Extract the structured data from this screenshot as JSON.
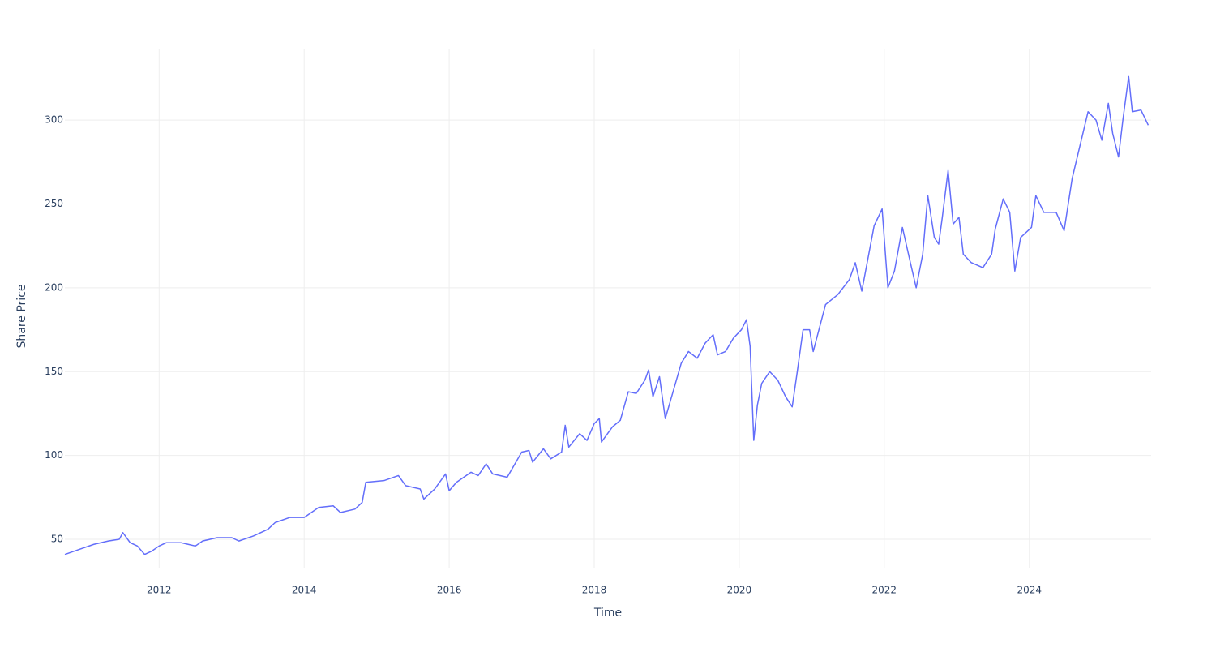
{
  "chart_data": {
    "type": "line",
    "x_label": "Time",
    "y_label": "Share Price",
    "x": [
      2010.7,
      2010.9,
      2011.1,
      2011.3,
      2011.45,
      2011.5,
      2011.6,
      2011.7,
      2011.8,
      2011.9,
      2012.0,
      2012.1,
      2012.3,
      2012.4,
      2012.5,
      2012.6,
      2012.8,
      2013.0,
      2013.1,
      2013.3,
      2013.5,
      2013.6,
      2013.8,
      2014.0,
      2014.2,
      2014.4,
      2014.5,
      2014.7,
      2014.8,
      2014.85,
      2015.1,
      2015.3,
      2015.4,
      2015.6,
      2015.65,
      2015.8,
      2015.95,
      2016.0,
      2016.1,
      2016.3,
      2016.4,
      2016.51,
      2016.6,
      2016.8,
      2017.0,
      2017.1,
      2017.15,
      2017.3,
      2017.4,
      2017.55,
      2017.6,
      2017.65,
      2017.8,
      2017.9,
      2018.0,
      2018.07,
      2018.1,
      2018.25,
      2018.36,
      2018.47,
      2018.58,
      2018.7,
      2018.75,
      2018.81,
      2018.9,
      2018.98,
      2019.08,
      2019.2,
      2019.3,
      2019.42,
      2019.53,
      2019.64,
      2019.7,
      2019.81,
      2019.92,
      2020.03,
      2020.1,
      2020.15,
      2020.2,
      2020.25,
      2020.31,
      2020.42,
      2020.53,
      2020.64,
      2020.73,
      2020.8,
      2020.88,
      2020.97,
      2021.02,
      2021.19,
      2021.36,
      2021.52,
      2021.6,
      2021.69,
      2021.86,
      2021.97,
      2022.05,
      2022.14,
      2022.25,
      2022.36,
      2022.44,
      2022.53,
      2022.6,
      2022.69,
      2022.75,
      2022.8,
      2022.88,
      2022.95,
      2023.03,
      2023.09,
      2023.2,
      2023.36,
      2023.48,
      2023.53,
      2023.64,
      2023.73,
      2023.8,
      2023.88,
      2024.03,
      2024.09,
      2024.2,
      2024.37,
      2024.48,
      2024.59,
      2024.7,
      2024.81,
      2024.92,
      2025.0,
      2025.09,
      2025.15,
      2025.23,
      2025.29,
      2025.37,
      2025.42,
      2025.54,
      2025.64
    ],
    "series": [
      {
        "name": "Share Price",
        "color": "#636efa",
        "values": [
          41,
          44,
          47,
          49,
          50,
          54,
          48,
          46,
          41,
          43,
          46,
          48,
          48,
          47,
          46,
          49,
          51,
          51,
          49,
          52,
          56,
          60,
          63,
          63,
          69,
          70,
          66,
          68,
          72,
          84,
          85,
          88,
          82,
          80,
          74,
          80,
          89,
          79,
          84,
          90,
          88,
          95,
          89,
          87,
          102,
          103,
          96,
          104,
          98,
          102,
          118,
          105,
          113,
          109,
          119,
          122,
          108,
          117,
          121,
          138,
          137,
          145,
          151,
          135,
          147,
          122,
          137,
          155,
          162,
          158,
          167,
          172,
          160,
          162,
          170,
          175,
          181,
          165,
          109,
          130,
          143,
          150,
          145,
          135,
          129,
          150,
          175,
          175,
          162,
          190,
          196,
          205,
          215,
          198,
          237,
          247,
          200,
          210,
          236,
          215,
          200,
          220,
          255,
          230,
          226,
          242,
          270,
          238,
          242,
          220,
          215,
          212,
          220,
          235,
          253,
          245,
          210,
          230,
          236,
          255,
          245,
          245,
          234,
          265,
          285,
          305,
          300,
          288,
          310,
          292,
          278,
          300,
          326,
          305,
          306,
          297
        ]
      }
    ],
    "xlim": [
      2010.7,
      2025.68
    ],
    "xticks": [
      2012,
      2014,
      2016,
      2018,
      2020,
      2022,
      2024
    ],
    "ylim": [
      33.1,
      342.6
    ],
    "yticks": [
      50,
      100,
      150,
      200,
      250,
      300
    ],
    "grid": true
  }
}
